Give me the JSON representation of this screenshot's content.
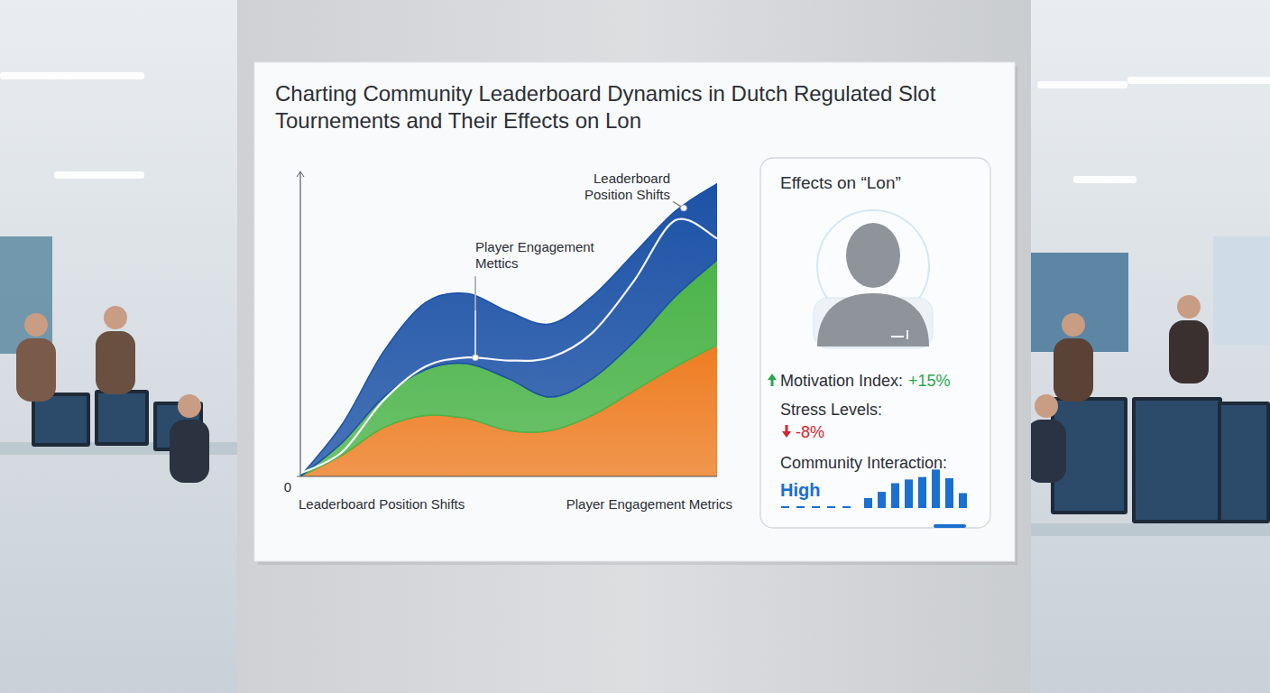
{
  "chart_data": {
    "type": "area",
    "title": "Charting Community Leaderboard Dynamics in Dutch Regulated Slot Tournements and Their Effects on Lon",
    "xlabel": [
      "Leaderboard Position Shifts",
      "Player Engagement Metrics"
    ],
    "x": [
      0,
      1,
      2,
      3,
      4,
      5,
      6,
      7,
      8,
      9,
      10
    ],
    "xlim": [
      0,
      10
    ],
    "ylim": [
      0,
      100
    ],
    "yticks": [
      0
    ],
    "tick_labels": "y",
    "stacked": true,
    "grid": false,
    "series": [
      {
        "color": "#ee7d22",
        "values": [
          0,
          7,
          16,
          20,
          19,
          15,
          15,
          20,
          28,
          36,
          43
        ]
      },
      {
        "color": "#4bb449",
        "values": [
          0,
          4,
          10,
          15,
          18,
          17,
          11,
          12,
          16,
          23,
          28
        ]
      },
      {
        "color": "#1c52a6",
        "values": [
          0,
          6,
          15,
          22,
          23,
          22,
          24,
          27,
          29,
          28,
          25
        ]
      },
      {
        "type": "line",
        "color": "#ffffff",
        "values": [
          1,
          8,
          25,
          36,
          39,
          38,
          39,
          47,
          64,
          84,
          78
        ]
      }
    ],
    "annotations": [
      {
        "text": "Player Engagement Mettics",
        "x": 4.2,
        "y": 39
      },
      {
        "text": "Leaderboard Position Shifts",
        "x": 9.2,
        "y": 88
      }
    ]
  },
  "effects_panel": {
    "title": "Effects on “Lon”",
    "metrics": [
      {
        "label": "Motivation Index:",
        "value": 15,
        "value_label": "+15%",
        "direction": "up",
        "color": "#2aa84a"
      },
      {
        "label": "Stress Levels:",
        "value": -8,
        "value_label": "-8%",
        "direction": "down",
        "color": "#d2262c"
      },
      {
        "label": "Community Interaction:",
        "value_label": "High",
        "color": "#1a6fd0"
      }
    ],
    "bars": {
      "values": [
        8,
        13,
        20,
        23,
        25,
        31,
        24,
        12
      ],
      "ylim": [
        0,
        32
      ],
      "color": "#1a6fd0"
    }
  }
}
